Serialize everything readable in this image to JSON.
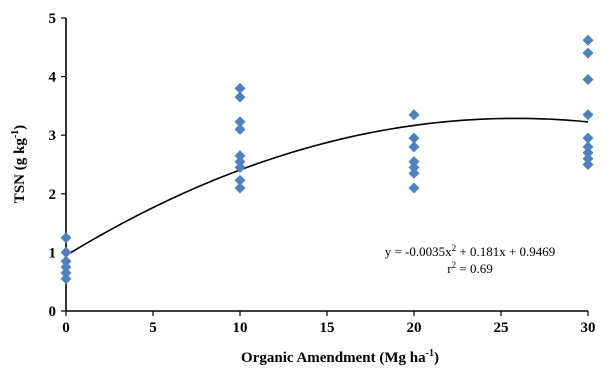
{
  "chart_data": {
    "type": "scatter",
    "xlabel": "Organic Amendment (Mg ha",
    "xlabel_sup": "-1",
    "xlabel_end": ")",
    "ylabel": "TSN (g kg",
    "ylabel_sup": "-1",
    "ylabel_end": ")",
    "xlim": [
      0,
      30
    ],
    "ylim": [
      0,
      5
    ],
    "x_ticks": [
      "0",
      "5",
      "10",
      "15",
      "20",
      "25",
      "30"
    ],
    "y_ticks": [
      "0",
      "1",
      "2",
      "3",
      "4",
      "5"
    ],
    "grid": false,
    "marker_color": "#4f81bd",
    "series": [
      {
        "points": [
          {
            "x": 0,
            "y": 1.25
          },
          {
            "x": 0,
            "y": 1.0
          },
          {
            "x": 0,
            "y": 0.85
          },
          {
            "x": 0,
            "y": 0.75
          },
          {
            "x": 0,
            "y": 0.65
          },
          {
            "x": 0,
            "y": 0.55
          },
          {
            "x": 10,
            "y": 3.8
          },
          {
            "x": 10,
            "y": 3.65
          },
          {
            "x": 10,
            "y": 3.23
          },
          {
            "x": 10,
            "y": 3.1
          },
          {
            "x": 10,
            "y": 2.65
          },
          {
            "x": 10,
            "y": 2.55
          },
          {
            "x": 10,
            "y": 2.45
          },
          {
            "x": 10,
            "y": 2.23
          },
          {
            "x": 10,
            "y": 2.1
          },
          {
            "x": 20,
            "y": 3.35
          },
          {
            "x": 20,
            "y": 2.95
          },
          {
            "x": 20,
            "y": 2.8
          },
          {
            "x": 20,
            "y": 2.55
          },
          {
            "x": 20,
            "y": 2.45
          },
          {
            "x": 20,
            "y": 2.35
          },
          {
            "x": 20,
            "y": 2.1
          },
          {
            "x": 30,
            "y": 4.62
          },
          {
            "x": 30,
            "y": 4.4
          },
          {
            "x": 30,
            "y": 3.95
          },
          {
            "x": 30,
            "y": 3.35
          },
          {
            "x": 30,
            "y": 2.95
          },
          {
            "x": 30,
            "y": 2.8
          },
          {
            "x": 30,
            "y": 2.7
          },
          {
            "x": 30,
            "y": 2.6
          },
          {
            "x": 30,
            "y": 2.5
          }
        ]
      }
    ],
    "trendline": {
      "type": "polynomial",
      "coefficients": [
        -0.0035,
        0.181,
        0.9469
      ],
      "equation_prefix": "y = -0.0035x",
      "equation_sup": "2",
      "equation_suffix": " + 0.181x + 0.9469",
      "r2_prefix": "r",
      "r2_sup": "2",
      "r2_suffix": " = 0.69"
    }
  }
}
